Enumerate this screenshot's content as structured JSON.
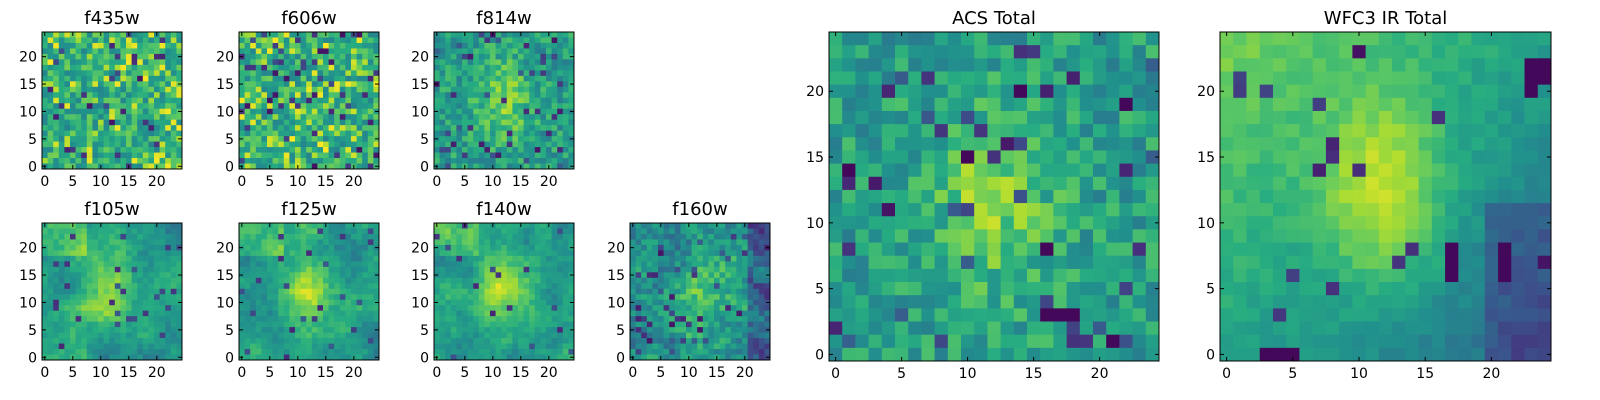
{
  "chart_data": [
    {
      "id": "f435w",
      "type": "heatmap",
      "title": "f435w",
      "size": 25,
      "xlim": [
        0,
        24
      ],
      "ylim": [
        0,
        24
      ],
      "xticks": [
        0,
        5,
        10,
        15,
        20
      ],
      "yticks": [
        0,
        5,
        10,
        15,
        20
      ],
      "xlabel": "",
      "ylabel": "",
      "colormap": "viridis",
      "style": "noisy",
      "seed": 11
    },
    {
      "id": "f606w",
      "type": "heatmap",
      "title": "f606w",
      "size": 25,
      "xlim": [
        0,
        24
      ],
      "ylim": [
        0,
        24
      ],
      "xticks": [
        0,
        5,
        10,
        15,
        20
      ],
      "yticks": [
        0,
        5,
        10,
        15,
        20
      ],
      "xlabel": "",
      "ylabel": "",
      "colormap": "viridis",
      "style": "noisy",
      "seed": 23
    },
    {
      "id": "f814w",
      "type": "heatmap",
      "title": "f814w",
      "size": 25,
      "xlim": [
        0,
        24
      ],
      "ylim": [
        0,
        24
      ],
      "xticks": [
        0,
        5,
        10,
        15,
        20
      ],
      "yticks": [
        0,
        5,
        10,
        15,
        20
      ],
      "xlabel": "",
      "ylabel": "",
      "colormap": "viridis",
      "style": "noisy-core",
      "seed": 37
    },
    {
      "id": "f105w",
      "type": "heatmap",
      "title": "f105w",
      "size": 25,
      "xlim": [
        0,
        24
      ],
      "ylim": [
        0,
        24
      ],
      "xticks": [
        0,
        5,
        10,
        15,
        20
      ],
      "yticks": [
        0,
        5,
        10,
        15,
        20
      ],
      "xlabel": "",
      "ylabel": "",
      "colormap": "viridis",
      "style": "smooth",
      "seed": 41
    },
    {
      "id": "f125w",
      "type": "heatmap",
      "title": "f125w",
      "size": 25,
      "xlim": [
        0,
        24
      ],
      "ylim": [
        0,
        24
      ],
      "xticks": [
        0,
        5,
        10,
        15,
        20
      ],
      "yticks": [
        0,
        5,
        10,
        15,
        20
      ],
      "xlabel": "",
      "ylabel": "",
      "colormap": "viridis",
      "style": "smooth",
      "seed": 53
    },
    {
      "id": "f140w",
      "type": "heatmap",
      "title": "f140w",
      "size": 25,
      "xlim": [
        0,
        24
      ],
      "ylim": [
        0,
        24
      ],
      "xticks": [
        0,
        5,
        10,
        15,
        20
      ],
      "yticks": [
        0,
        5,
        10,
        15,
        20
      ],
      "xlabel": "",
      "ylabel": "",
      "colormap": "viridis",
      "style": "smooth",
      "seed": 67
    },
    {
      "id": "f160w",
      "type": "heatmap",
      "title": "f160w",
      "size": 25,
      "xlim": [
        0,
        24
      ],
      "ylim": [
        0,
        24
      ],
      "xticks": [
        0,
        5,
        10,
        15,
        20
      ],
      "yticks": [
        0,
        5,
        10,
        15,
        20
      ],
      "xlabel": "",
      "ylabel": "",
      "colormap": "viridis",
      "style": "smooth-noisy",
      "seed": 79
    },
    {
      "id": "acs-total",
      "type": "heatmap",
      "title": "ACS Total",
      "size": 25,
      "xlim": [
        0,
        24
      ],
      "ylim": [
        0,
        24
      ],
      "xticks": [
        0,
        5,
        10,
        15,
        20
      ],
      "yticks": [
        0,
        5,
        10,
        15,
        20
      ],
      "xlabel": "",
      "ylabel": "",
      "colormap": "viridis",
      "style": "noisy-core",
      "seed": 83
    },
    {
      "id": "wfc3-ir-total",
      "type": "heatmap",
      "title": "WFC3 IR Total",
      "size": 25,
      "xlim": [
        0,
        24
      ],
      "ylim": [
        0,
        24
      ],
      "xticks": [
        0,
        5,
        10,
        15,
        20
      ],
      "yticks": [
        0,
        5,
        10,
        15,
        20
      ],
      "xlabel": "",
      "ylabel": "",
      "colormap": "viridis",
      "style": "ir-total",
      "seed": 97
    }
  ],
  "colors": {
    "viridis": [
      "#440154",
      "#472c7a",
      "#3b528b",
      "#2c728e",
      "#21908d",
      "#27ad81",
      "#5cc863",
      "#aadc32",
      "#fde725"
    ]
  }
}
